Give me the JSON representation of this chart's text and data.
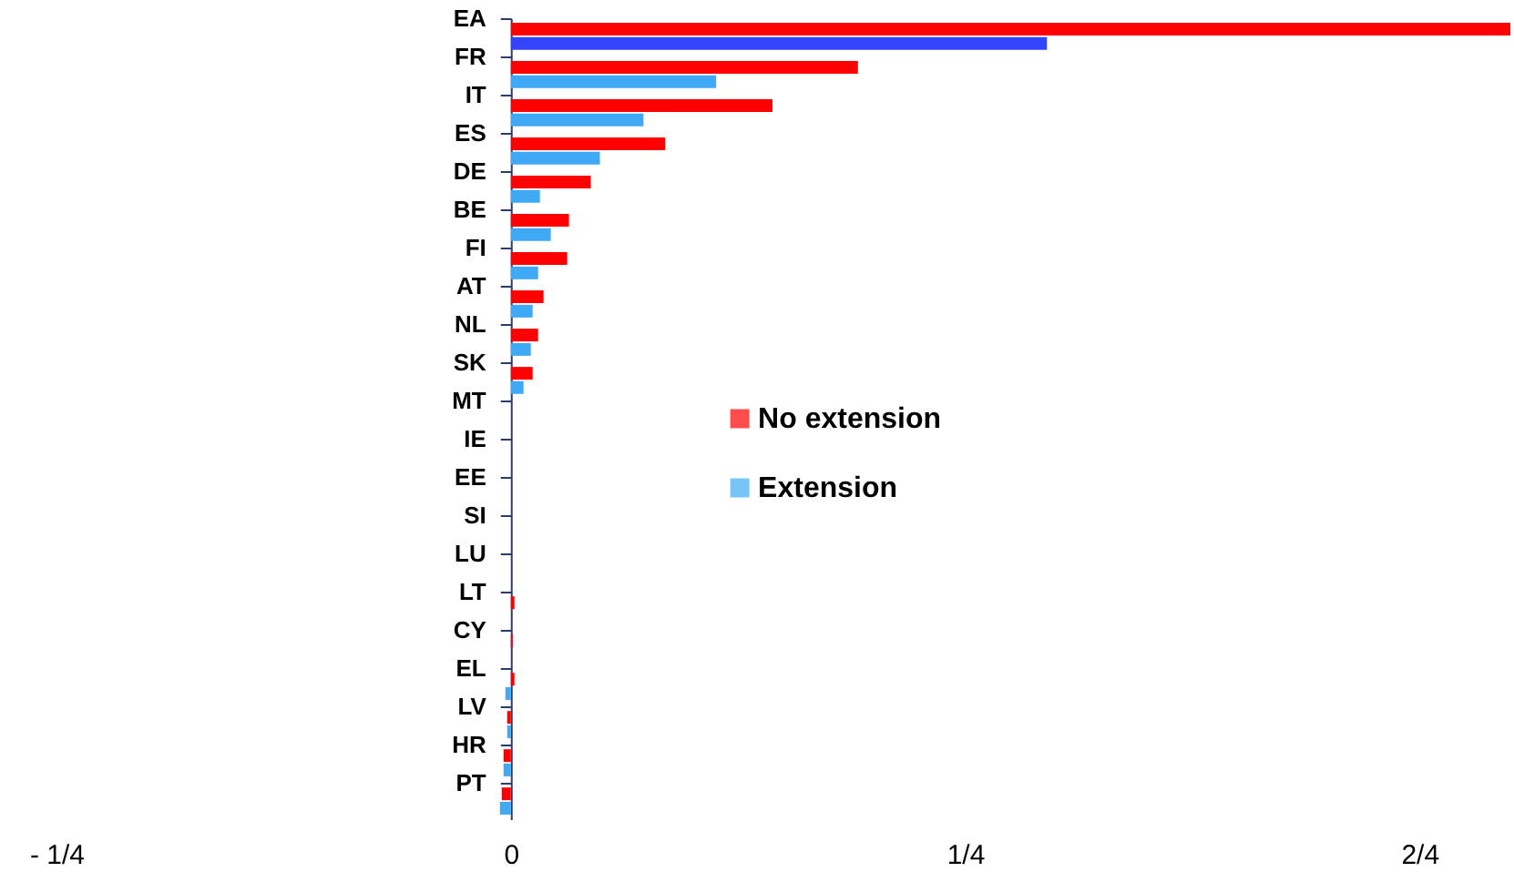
{
  "chart_data": {
    "type": "bar",
    "orientation": "horizontal",
    "categories": [
      "EA",
      "FR",
      "IT",
      "ES",
      "DE",
      "BE",
      "FI",
      "AT",
      "NL",
      "SK",
      "MT",
      "IE",
      "EE",
      "SI",
      "LU",
      "LT",
      "CY",
      "EL",
      "LV",
      "HR",
      "PT"
    ],
    "series": [
      {
        "name": "No extension",
        "color": "#ff0000",
        "values": [
          0.55,
          0.191,
          0.144,
          0.085,
          0.044,
          0.032,
          0.031,
          0.018,
          0.015,
          0.012,
          0,
          0,
          0,
          0,
          0,
          0.002,
          0.001,
          0.002,
          -0.002,
          -0.004,
          -0.005
        ]
      },
      {
        "name": "Extension",
        "color": "#3fa9f5",
        "colors": [
          "#3344ff",
          "#3fa9f5",
          "#3fa9f5",
          "#3fa9f5",
          "#3fa9f5",
          "#3fa9f5",
          "#3fa9f5",
          "#3fa9f5",
          "#3fa9f5",
          "#3fa9f5",
          "#3fa9f5",
          "#3fa9f5",
          "#3fa9f5",
          "#3fa9f5",
          "#3fa9f5",
          "#3fa9f5",
          "#3fa9f5",
          "#3fa9f5",
          "#3fa9f5",
          "#3fa9f5",
          "#3fa9f5"
        ],
        "values": [
          0.295,
          0.113,
          0.073,
          0.049,
          0.016,
          0.022,
          0.015,
          0.012,
          0.011,
          0.007,
          0,
          0,
          0,
          0,
          0,
          0,
          0,
          -0.003,
          -0.002,
          -0.004,
          -0.006
        ]
      }
    ],
    "xlim": [
      -0.25,
      0.55
    ],
    "xticks": [
      {
        "value": -0.25,
        "label": "- 1/4"
      },
      0,
      {
        "value": 0.25,
        "label": "1/4"
      },
      {
        "value": 0.5,
        "label": "2/4"
      }
    ],
    "grid": false,
    "legend": "right"
  }
}
